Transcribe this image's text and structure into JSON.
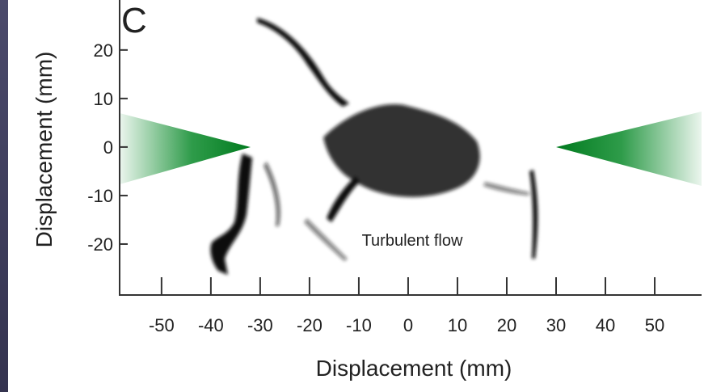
{
  "chart_data": {
    "type": "image",
    "panel_label": "C",
    "annotation": "Turbulent flow",
    "x_label": "Displacement (mm)",
    "y_label": "Displacement (mm)",
    "xlim": [
      -58.5,
      59.5
    ],
    "ylim": [
      -30.5,
      30.3
    ],
    "xticks": [
      -50,
      -40,
      -30,
      -20,
      -10,
      0,
      10,
      20,
      30,
      40,
      50
    ],
    "yticks": [
      -20,
      -10,
      0,
      10,
      20
    ]
  }
}
